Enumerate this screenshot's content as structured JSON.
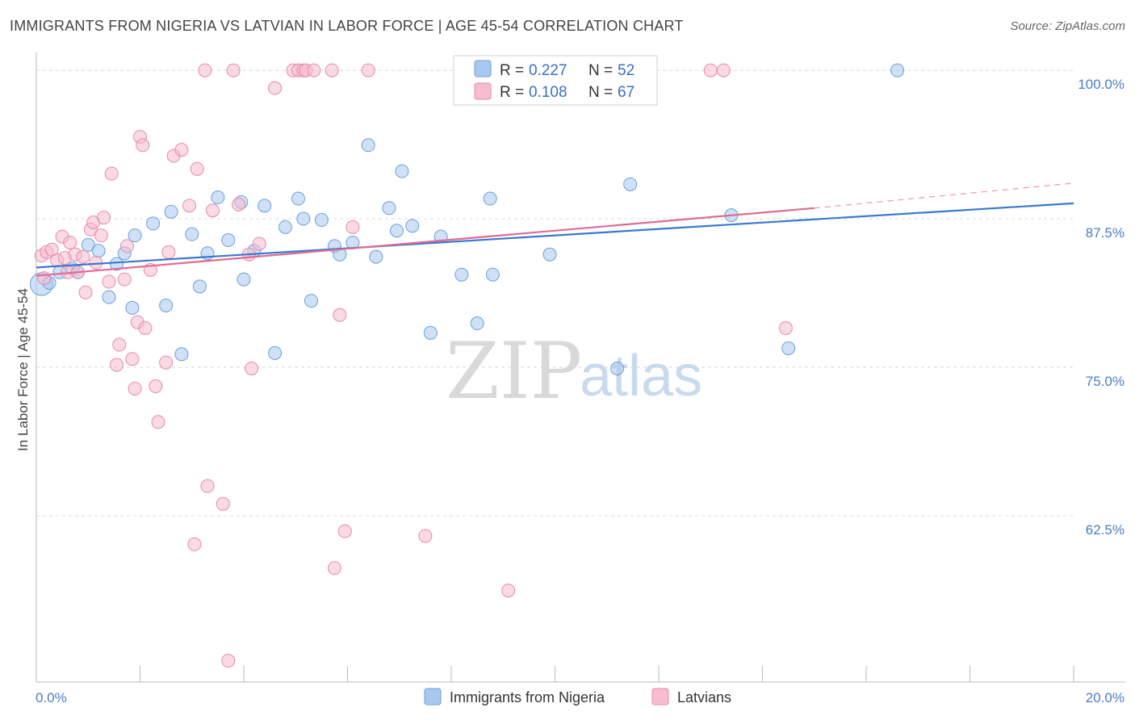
{
  "title": "IMMIGRANTS FROM NIGERIA VS LATVIAN IN LABOR FORCE | AGE 45-54 CORRELATION CHART",
  "source": "Source: ZipAtlas.com",
  "watermark": {
    "zip": "ZIP",
    "atlas": "atlas"
  },
  "colors": {
    "blue_fill": "#a8c8f0",
    "blue_stroke": "#6a9fdc",
    "blue_line": "#3a78d0",
    "pink_fill": "#f7bcd0",
    "pink_stroke": "#e58aab",
    "pink_line": "#e06a94",
    "axis_text": "#4a7cc9",
    "grid": "#d8d8d8"
  },
  "legend": {
    "rows": [
      {
        "r_label": "R =",
        "r_value": "0.227",
        "n_label": "N =",
        "n_value": "52"
      },
      {
        "r_label": "R =",
        "r_value": "0.108",
        "n_label": "N =",
        "n_value": "67"
      }
    ]
  },
  "chart_data": {
    "type": "scatter",
    "ylabel": "In Labor Force | Age 45-54",
    "xlim": [
      0,
      20
    ],
    "ylim": [
      48.5,
      101.5
    ],
    "x_tick_labels": [
      {
        "value": 0,
        "label": "0.0%"
      },
      {
        "value": 20,
        "label": "20.0%"
      }
    ],
    "y_ticks": [
      {
        "value": 62.5,
        "label": "62.5%"
      },
      {
        "value": 75,
        "label": "75.0%"
      },
      {
        "value": 87.5,
        "label": "87.5%"
      },
      {
        "value": 100,
        "label": "100.0%"
      }
    ],
    "x_minor_ticks": [
      2,
      4,
      6,
      8,
      10,
      12,
      14,
      16,
      18,
      20
    ],
    "grid": true,
    "legend_position": "top-center",
    "series": [
      {
        "name": "Immigrants from Nigeria",
        "color": "#a8c8f0",
        "trend": {
          "x0": 0,
          "y0": 83.4,
          "x1": 20,
          "y1": 88.8
        },
        "points": [
          [
            0.1,
            82.0
          ],
          [
            0.25,
            82.1
          ],
          [
            0.45,
            83.0
          ],
          [
            0.7,
            83.3
          ],
          [
            0.8,
            83.0
          ],
          [
            1.0,
            85.3
          ],
          [
            1.2,
            84.8
          ],
          [
            1.4,
            80.9
          ],
          [
            1.55,
            83.7
          ],
          [
            1.7,
            84.6
          ],
          [
            1.85,
            80.0
          ],
          [
            1.9,
            86.1
          ],
          [
            2.25,
            87.1
          ],
          [
            2.5,
            80.2
          ],
          [
            2.6,
            88.1
          ],
          [
            2.8,
            76.1
          ],
          [
            3.0,
            86.2
          ],
          [
            3.15,
            81.8
          ],
          [
            3.3,
            84.6
          ],
          [
            3.5,
            89.3
          ],
          [
            3.7,
            85.7
          ],
          [
            3.95,
            88.9
          ],
          [
            4.0,
            82.4
          ],
          [
            4.2,
            84.8
          ],
          [
            4.4,
            88.6
          ],
          [
            4.6,
            76.2
          ],
          [
            4.8,
            86.8
          ],
          [
            5.05,
            89.2
          ],
          [
            5.15,
            87.5
          ],
          [
            5.3,
            80.6
          ],
          [
            5.5,
            87.4
          ],
          [
            5.75,
            85.2
          ],
          [
            5.85,
            84.5
          ],
          [
            6.1,
            85.5
          ],
          [
            6.4,
            93.7
          ],
          [
            6.55,
            84.3
          ],
          [
            6.8,
            88.4
          ],
          [
            6.95,
            86.5
          ],
          [
            7.05,
            91.5
          ],
          [
            7.25,
            86.9
          ],
          [
            7.6,
            77.9
          ],
          [
            7.8,
            86.0
          ],
          [
            8.2,
            82.8
          ],
          [
            8.5,
            78.7
          ],
          [
            8.75,
            89.2
          ],
          [
            8.8,
            82.8
          ],
          [
            9.9,
            84.5
          ],
          [
            11.2,
            74.9
          ],
          [
            11.45,
            90.4
          ],
          [
            13.4,
            87.8
          ],
          [
            14.5,
            76.6
          ],
          [
            16.6,
            100.0
          ]
        ]
      },
      {
        "name": "Latvians",
        "color": "#f7bcd0",
        "trend": {
          "x0": 0,
          "y0": 82.7,
          "x1": 15.0,
          "y1": 88.4
        },
        "trend_dashed": {
          "x0": 15.0,
          "y0": 88.4,
          "x1": 20,
          "y1": 90.5
        },
        "points": [
          [
            0.1,
            84.4
          ],
          [
            0.15,
            82.5
          ],
          [
            0.2,
            84.7
          ],
          [
            0.3,
            84.9
          ],
          [
            0.4,
            84.0
          ],
          [
            0.5,
            86.0
          ],
          [
            0.55,
            84.2
          ],
          [
            0.6,
            83.0
          ],
          [
            0.65,
            85.5
          ],
          [
            0.75,
            84.5
          ],
          [
            0.8,
            83.0
          ],
          [
            0.9,
            84.3
          ],
          [
            0.95,
            81.3
          ],
          [
            1.05,
            86.6
          ],
          [
            1.1,
            87.2
          ],
          [
            1.15,
            83.8
          ],
          [
            1.25,
            86.1
          ],
          [
            1.3,
            87.6
          ],
          [
            1.4,
            82.2
          ],
          [
            1.45,
            91.3
          ],
          [
            1.55,
            75.2
          ],
          [
            1.6,
            76.9
          ],
          [
            1.7,
            82.4
          ],
          [
            1.75,
            85.2
          ],
          [
            1.85,
            75.7
          ],
          [
            1.9,
            73.2
          ],
          [
            1.95,
            78.8
          ],
          [
            2.0,
            94.4
          ],
          [
            2.05,
            93.7
          ],
          [
            2.1,
            78.3
          ],
          [
            2.2,
            83.2
          ],
          [
            2.3,
            73.4
          ],
          [
            2.35,
            70.4
          ],
          [
            2.5,
            75.4
          ],
          [
            2.55,
            84.7
          ],
          [
            2.65,
            92.8
          ],
          [
            2.8,
            93.3
          ],
          [
            2.95,
            88.6
          ],
          [
            3.05,
            60.1
          ],
          [
            3.1,
            91.7
          ],
          [
            3.25,
            100.0
          ],
          [
            3.3,
            65.0
          ],
          [
            3.4,
            88.2
          ],
          [
            3.6,
            63.5
          ],
          [
            3.7,
            50.3
          ],
          [
            3.8,
            100.0
          ],
          [
            3.9,
            88.7
          ],
          [
            4.1,
            84.5
          ],
          [
            4.15,
            74.9
          ],
          [
            4.3,
            85.4
          ],
          [
            4.6,
            98.5
          ],
          [
            4.95,
            100.0
          ],
          [
            5.05,
            100.0
          ],
          [
            5.15,
            100.0
          ],
          [
            5.2,
            100.0
          ],
          [
            5.35,
            100.0
          ],
          [
            5.7,
            100.0
          ],
          [
            5.75,
            58.1
          ],
          [
            5.85,
            79.4
          ],
          [
            5.95,
            61.2
          ],
          [
            6.1,
            86.8
          ],
          [
            6.4,
            100.0
          ],
          [
            7.5,
            60.8
          ],
          [
            9.1,
            56.2
          ],
          [
            13.0,
            100.0
          ],
          [
            13.25,
            100.0
          ],
          [
            14.45,
            78.3
          ]
        ]
      }
    ]
  }
}
